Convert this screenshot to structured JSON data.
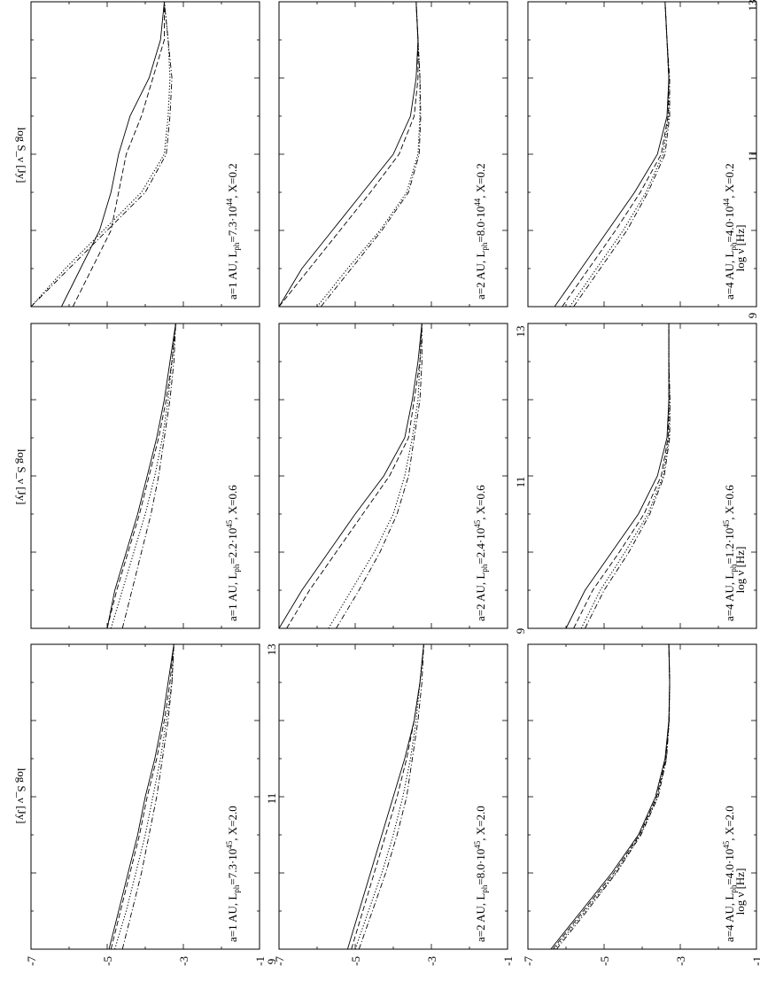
{
  "figure": {
    "xlabel": "log ν [Hz]",
    "ylabel": "log S_ν [Jy]"
  },
  "chart_data": [
    {
      "type": "line",
      "label": "a=1 AU, L_ph=7.3·10^44, X=0.2",
      "label_parts": [
        "a=1 AU, L",
        "ph",
        "=7.3·10",
        "44",
        ", X=0.2"
      ],
      "xlim": [
        9,
        13
      ],
      "ylim": [
        -7,
        -1
      ],
      "xticks": [
        9,
        11,
        13
      ],
      "yticks": [
        -1,
        -3,
        -5,
        -7
      ],
      "series": [
        {
          "style": "solid",
          "x": [
            9,
            9.5,
            10,
            10.5,
            11,
            11.5,
            12,
            12.5,
            13
          ],
          "y": [
            -6.2,
            -5.7,
            -5.2,
            -4.9,
            -4.7,
            -4.4,
            -3.9,
            -3.6,
            -3.5
          ]
        },
        {
          "style": "dashed",
          "x": [
            9,
            9.5,
            10,
            10.5,
            11,
            11.5,
            12,
            12.5,
            13
          ],
          "y": [
            -5.9,
            -5.4,
            -4.9,
            -4.7,
            -4.5,
            -4.1,
            -3.8,
            -3.5,
            -3.5
          ]
        },
        {
          "style": "dotted",
          "x": [
            9,
            9.5,
            10,
            10.5,
            11,
            11.5,
            12,
            12.5,
            13
          ],
          "y": [
            -7.0,
            -6.1,
            -5.1,
            -4.1,
            -3.5,
            -3.4,
            -3.35,
            -3.4,
            -3.5
          ]
        },
        {
          "style": "dashdot",
          "x": [
            9,
            9.5,
            10,
            10.5,
            11,
            11.5,
            12,
            12.5,
            13
          ],
          "y": [
            -7.0,
            -6.0,
            -5.0,
            -4.0,
            -3.45,
            -3.35,
            -3.3,
            -3.4,
            -3.5
          ]
        }
      ]
    },
    {
      "type": "line",
      "label": "a=1 AU, L_ph=2.2·10^45, X=0.6",
      "label_parts": [
        "a=1 AU, L",
        "ph",
        "=2.2·10",
        "45",
        ", X=0.6"
      ],
      "xlim": [
        9,
        13
      ],
      "ylim": [
        -7,
        -1
      ],
      "xticks": [
        9,
        11,
        13
      ],
      "yticks": [
        -1,
        -3,
        -5,
        -7
      ],
      "series": [
        {
          "style": "solid",
          "x": [
            9,
            9.5,
            10,
            10.5,
            11,
            11.5,
            12,
            12.5,
            13
          ],
          "y": [
            -5.0,
            -4.8,
            -4.5,
            -4.2,
            -3.95,
            -3.7,
            -3.5,
            -3.35,
            -3.2
          ]
        },
        {
          "style": "dashed",
          "x": [
            9,
            9.5,
            10,
            10.5,
            11,
            11.5,
            12,
            12.5,
            13
          ],
          "y": [
            -5.0,
            -4.75,
            -4.45,
            -4.15,
            -3.9,
            -3.65,
            -3.45,
            -3.3,
            -3.2
          ]
        },
        {
          "style": "dotted",
          "x": [
            9,
            9.5,
            10,
            10.5,
            11,
            11.5,
            12,
            12.5,
            13
          ],
          "y": [
            -4.9,
            -4.6,
            -4.3,
            -4.0,
            -3.75,
            -3.55,
            -3.4,
            -3.3,
            -3.2
          ]
        },
        {
          "style": "dashdot",
          "x": [
            9,
            9.5,
            10,
            10.5,
            11,
            11.5,
            12,
            12.5,
            13
          ],
          "y": [
            -4.6,
            -4.35,
            -4.1,
            -3.85,
            -3.65,
            -3.5,
            -3.35,
            -3.25,
            -3.2
          ]
        }
      ]
    },
    {
      "type": "line",
      "label": "a=1 AU, L_ph=7.3·10^45, X=2.0",
      "label_parts": [
        "a=1 AU, L",
        "ph",
        "=7.3·10",
        "45",
        ", X=2.0"
      ],
      "xlim": [
        9,
        13
      ],
      "ylim": [
        -7,
        -1
      ],
      "xticks": [
        9,
        11,
        13
      ],
      "yticks": [
        -1,
        -3,
        -5,
        -7
      ],
      "series": [
        {
          "style": "solid",
          "x": [
            9,
            9.5,
            10,
            10.5,
            11,
            11.5,
            12,
            12.5,
            13
          ],
          "y": [
            -4.95,
            -4.7,
            -4.45,
            -4.2,
            -4.0,
            -3.75,
            -3.55,
            -3.4,
            -3.25
          ]
        },
        {
          "style": "dashed",
          "x": [
            9,
            9.5,
            10,
            10.5,
            11,
            11.5,
            12,
            12.5,
            13
          ],
          "y": [
            -4.9,
            -4.65,
            -4.4,
            -4.15,
            -3.95,
            -3.7,
            -3.5,
            -3.35,
            -3.25
          ]
        },
        {
          "style": "dotted",
          "x": [
            9,
            9.5,
            10,
            10.5,
            11,
            11.5,
            12,
            12.5,
            13
          ],
          "y": [
            -4.8,
            -4.5,
            -4.25,
            -4.0,
            -3.8,
            -3.6,
            -3.45,
            -3.3,
            -3.25
          ]
        },
        {
          "style": "dashdot",
          "x": [
            9,
            9.5,
            10,
            10.5,
            11,
            11.5,
            12,
            12.5,
            13
          ],
          "y": [
            -4.6,
            -4.35,
            -4.1,
            -3.9,
            -3.7,
            -3.55,
            -3.4,
            -3.3,
            -3.25
          ]
        }
      ]
    },
    {
      "type": "line",
      "label": "a=2 AU, L_ph=8.0·10^44, X=0.2",
      "label_parts": [
        "a=2 AU, L",
        "ph",
        "=8.0·10",
        "44",
        ", X=0.2"
      ],
      "xlim": [
        9,
        13
      ],
      "ylim": [
        -7,
        -1
      ],
      "xticks": [
        9,
        11,
        13
      ],
      "yticks": [
        -1,
        -3,
        -5,
        -7
      ],
      "series": [
        {
          "style": "solid",
          "x": [
            9,
            9.5,
            10,
            10.5,
            11,
            11.5,
            12,
            12.5,
            13
          ],
          "y": [
            -7.0,
            -6.4,
            -5.6,
            -4.8,
            -4.0,
            -3.55,
            -3.4,
            -3.35,
            -3.4
          ]
        },
        {
          "style": "dashed",
          "x": [
            9,
            9.5,
            10,
            10.5,
            11,
            11.5,
            12,
            12.5,
            13
          ],
          "y": [
            -7.0,
            -6.2,
            -5.4,
            -4.6,
            -3.85,
            -3.45,
            -3.35,
            -3.35,
            -3.4
          ]
        },
        {
          "style": "dotted",
          "x": [
            9,
            9.5,
            10,
            10.5,
            11,
            11.5,
            12,
            12.5,
            13
          ],
          "y": [
            -6.0,
            -5.2,
            -4.35,
            -3.65,
            -3.35,
            -3.3,
            -3.3,
            -3.35,
            -3.4
          ]
        },
        {
          "style": "dashdot",
          "x": [
            9,
            9.5,
            10,
            10.5,
            11,
            11.5,
            12,
            12.5,
            13
          ],
          "y": [
            -5.9,
            -5.1,
            -4.3,
            -3.6,
            -3.32,
            -3.28,
            -3.3,
            -3.35,
            -3.4
          ]
        }
      ]
    },
    {
      "type": "line",
      "label": "a=2 AU, L_ph=2.4·10^45, X=0.6",
      "label_parts": [
        "a=2 AU, L",
        "ph",
        "=2.4·10",
        "45",
        ", X=0.6"
      ],
      "xlim": [
        9,
        13
      ],
      "ylim": [
        -7,
        -1
      ],
      "xticks": [
        9,
        11,
        13
      ],
      "yticks": [
        -1,
        -3,
        -5,
        -7
      ],
      "series": [
        {
          "style": "solid",
          "x": [
            9,
            9.5,
            10,
            10.5,
            11,
            11.5,
            12,
            12.5,
            13
          ],
          "y": [
            -7.0,
            -6.4,
            -5.7,
            -5.0,
            -4.25,
            -3.7,
            -3.5,
            -3.35,
            -3.25
          ]
        },
        {
          "style": "dashed",
          "x": [
            9,
            9.5,
            10,
            10.5,
            11,
            11.5,
            12,
            12.5,
            13
          ],
          "y": [
            -6.8,
            -6.2,
            -5.5,
            -4.8,
            -4.1,
            -3.6,
            -3.45,
            -3.3,
            -3.25
          ]
        },
        {
          "style": "dotted",
          "x": [
            9,
            9.5,
            10,
            10.5,
            11,
            11.5,
            12,
            12.5,
            13
          ],
          "y": [
            -5.7,
            -5.1,
            -4.5,
            -4.0,
            -3.7,
            -3.5,
            -3.35,
            -3.3,
            -3.25
          ]
        },
        {
          "style": "dashdot",
          "x": [
            9,
            9.5,
            10,
            10.5,
            11,
            11.5,
            12,
            12.5,
            13
          ],
          "y": [
            -5.5,
            -4.9,
            -4.35,
            -3.9,
            -3.6,
            -3.45,
            -3.3,
            -3.25,
            -3.25
          ]
        }
      ]
    },
    {
      "type": "line",
      "label": "a=2 AU, L_ph=8.0·10^45, X=2.0",
      "label_parts": [
        "a=2 AU, L",
        "ph",
        "=8.0·10",
        "45",
        ", X=2.0"
      ],
      "xlim": [
        9,
        13
      ],
      "ylim": [
        -7,
        -1
      ],
      "xticks": [
        9,
        11,
        13
      ],
      "yticks": [
        -1,
        -3,
        -5,
        -7
      ],
      "series": [
        {
          "style": "solid",
          "x": [
            9,
            9.5,
            10,
            10.5,
            11,
            11.5,
            12,
            12.5,
            13
          ],
          "y": [
            -5.2,
            -4.9,
            -4.6,
            -4.3,
            -4.0,
            -3.7,
            -3.45,
            -3.3,
            -3.2
          ]
        },
        {
          "style": "dashed",
          "x": [
            9,
            9.5,
            10,
            10.5,
            11,
            11.5,
            12,
            12.5,
            13
          ],
          "y": [
            -5.1,
            -4.8,
            -4.5,
            -4.2,
            -3.9,
            -3.65,
            -3.45,
            -3.3,
            -3.2
          ]
        },
        {
          "style": "dotted",
          "x": [
            9,
            9.5,
            10,
            10.5,
            11,
            11.5,
            12,
            12.5,
            13
          ],
          "y": [
            -5.0,
            -4.65,
            -4.3,
            -4.0,
            -3.75,
            -3.55,
            -3.4,
            -3.3,
            -3.2
          ]
        },
        {
          "style": "dashdot",
          "x": [
            9,
            9.5,
            10,
            10.5,
            11,
            11.5,
            12,
            12.5,
            13
          ],
          "y": [
            -4.9,
            -4.55,
            -4.2,
            -3.9,
            -3.65,
            -3.5,
            -3.35,
            -3.25,
            -3.2
          ]
        }
      ]
    },
    {
      "type": "line",
      "label": "a=4 AU, L_ph=4.0·10^44, X=0.2",
      "label_parts": [
        "a=4 AU, L",
        "ph",
        "=4.0·10",
        "44",
        ", X=0.2"
      ],
      "xlim": [
        9,
        13
      ],
      "ylim": [
        -7,
        -1
      ],
      "xticks": [
        9,
        11,
        13
      ],
      "yticks": [
        -1,
        -3,
        -5,
        -7
      ],
      "series": [
        {
          "style": "solid",
          "x": [
            9,
            9.5,
            10,
            10.5,
            11,
            11.5,
            12,
            12.5,
            13
          ],
          "y": [
            -6.3,
            -5.6,
            -4.9,
            -4.2,
            -3.6,
            -3.35,
            -3.3,
            -3.35,
            -3.4
          ]
        },
        {
          "style": "dashed",
          "x": [
            9,
            9.5,
            10,
            10.5,
            11,
            11.5,
            12,
            12.5,
            13
          ],
          "y": [
            -6.1,
            -5.4,
            -4.7,
            -4.05,
            -3.5,
            -3.32,
            -3.3,
            -3.35,
            -3.4
          ]
        },
        {
          "style": "dotted",
          "x": [
            9,
            9.5,
            10,
            10.5,
            11,
            11.5,
            12,
            12.5,
            13
          ],
          "y": [
            -5.9,
            -5.2,
            -4.5,
            -3.9,
            -3.45,
            -3.3,
            -3.3,
            -3.35,
            -3.4
          ]
        },
        {
          "style": "dashdot",
          "x": [
            9,
            9.5,
            10,
            10.5,
            11,
            11.5,
            12,
            12.5,
            13
          ],
          "y": [
            -5.8,
            -5.1,
            -4.4,
            -3.85,
            -3.4,
            -3.28,
            -3.28,
            -3.35,
            -3.4
          ]
        }
      ]
    },
    {
      "type": "line",
      "label": "a=4 AU, L_ph=1.2·10^45, X=0.6",
      "label_parts": [
        "a=4 AU, L",
        "ph",
        "=1.2·10",
        "45",
        ", X=0.6"
      ],
      "xlim": [
        9,
        13
      ],
      "ylim": [
        -7,
        -1
      ],
      "xticks": [
        9,
        11,
        13
      ],
      "yticks": [
        -1,
        -3,
        -5,
        -7
      ],
      "series": [
        {
          "style": "solid",
          "x": [
            9,
            9.5,
            10,
            10.5,
            11,
            11.5,
            12,
            12.5,
            13
          ],
          "y": [
            -6.0,
            -5.5,
            -4.8,
            -4.1,
            -3.6,
            -3.35,
            -3.3,
            -3.3,
            -3.3
          ]
        },
        {
          "style": "dashed",
          "x": [
            9,
            9.5,
            10,
            10.5,
            11,
            11.5,
            12,
            12.5,
            13
          ],
          "y": [
            -5.8,
            -5.3,
            -4.6,
            -3.95,
            -3.5,
            -3.32,
            -3.3,
            -3.3,
            -3.3
          ]
        },
        {
          "style": "dotted",
          "x": [
            9,
            9.5,
            10,
            10.5,
            11,
            11.5,
            12,
            12.5,
            13
          ],
          "y": [
            -5.6,
            -5.1,
            -4.45,
            -3.85,
            -3.45,
            -3.3,
            -3.28,
            -3.3,
            -3.3
          ]
        },
        {
          "style": "dashdot",
          "x": [
            9,
            9.5,
            10,
            10.5,
            11,
            11.5,
            12,
            12.5,
            13
          ],
          "y": [
            -5.5,
            -5.0,
            -4.35,
            -3.8,
            -3.42,
            -3.28,
            -3.27,
            -3.3,
            -3.3
          ]
        }
      ]
    },
    {
      "type": "line",
      "label": "a=4 AU, L_ph=4.0·10^45, X=2.0",
      "label_parts": [
        "a=4 AU, L",
        "ph",
        "=4.0·10",
        "45",
        ", X=2.0"
      ],
      "xlim": [
        9,
        13
      ],
      "ylim": [
        -7,
        -1
      ],
      "xticks": [
        9,
        11,
        13
      ],
      "yticks": [
        -1,
        -3,
        -5,
        -7
      ],
      "series": [
        {
          "style": "solid",
          "x": [
            9,
            9.5,
            10,
            10.5,
            11,
            11.5,
            12,
            12.5,
            13
          ],
          "y": [
            -6.4,
            -5.6,
            -4.8,
            -4.1,
            -3.65,
            -3.4,
            -3.3,
            -3.28,
            -3.3
          ]
        },
        {
          "style": "dashed",
          "x": [
            9,
            9.5,
            10,
            10.5,
            11,
            11.5,
            12,
            12.5,
            13
          ],
          "y": [
            -6.35,
            -5.55,
            -4.75,
            -4.07,
            -3.62,
            -3.38,
            -3.3,
            -3.28,
            -3.3
          ]
        },
        {
          "style": "dotted",
          "x": [
            9,
            9.5,
            10,
            10.5,
            11,
            11.5,
            12,
            12.5,
            13
          ],
          "y": [
            -6.3,
            -5.5,
            -4.7,
            -4.05,
            -3.6,
            -3.37,
            -3.29,
            -3.28,
            -3.3
          ]
        },
        {
          "style": "dashdot",
          "x": [
            9,
            9.5,
            10,
            10.5,
            11,
            11.5,
            12,
            12.5,
            13
          ],
          "y": [
            -6.25,
            -5.45,
            -4.68,
            -4.03,
            -3.58,
            -3.36,
            -3.29,
            -3.28,
            -3.3
          ]
        }
      ]
    }
  ]
}
